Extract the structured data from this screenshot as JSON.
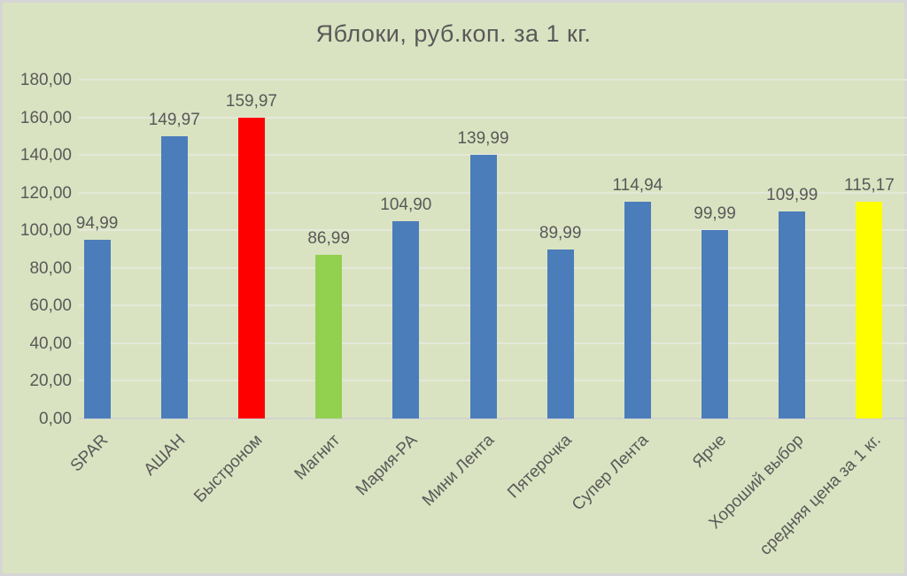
{
  "chart_data": {
    "type": "bar",
    "title": "Яблоки, руб.коп. за 1 кг.",
    "categories": [
      "SPAR",
      "АШАН",
      "Быстроном",
      "Магнит",
      "Мария-РА",
      "Мини Лента",
      "Пятерочка",
      "Супер Лента",
      "Ярче",
      "Хороший выбор",
      "средняя цена за 1 кг."
    ],
    "values": [
      94.99,
      149.97,
      159.97,
      86.99,
      104.9,
      139.99,
      89.99,
      114.94,
      99.99,
      109.99,
      115.17
    ],
    "value_labels": [
      "94,99",
      "149,97",
      "159,97",
      "86,99",
      "104,90",
      "139,99",
      "89,99",
      "114,94",
      "99,99",
      "109,99",
      "115,17"
    ],
    "bar_colors": [
      "#4b7dba",
      "#4b7dba",
      "#ff0000",
      "#92d050",
      "#4b7dba",
      "#4b7dba",
      "#4b7dba",
      "#4b7dba",
      "#4b7dba",
      "#4b7dba",
      "#ffff00"
    ],
    "xlabel": "",
    "ylabel": "",
    "ylim": [
      0,
      180
    ],
    "y_ticks": [
      {
        "value": 0,
        "label": "0,00"
      },
      {
        "value": 20,
        "label": "20,00"
      },
      {
        "value": 40,
        "label": "40,00"
      },
      {
        "value": 60,
        "label": "60,00"
      },
      {
        "value": 80,
        "label": "80,00"
      },
      {
        "value": 100,
        "label": "100,00"
      },
      {
        "value": 120,
        "label": "120,00"
      },
      {
        "value": 140,
        "label": "140,00"
      },
      {
        "value": 160,
        "label": "160,00"
      },
      {
        "value": 180,
        "label": "180,00"
      }
    ],
    "grid": true,
    "legend": "none",
    "colors": {
      "background": "#dae3c1",
      "frame_border": "#d6d6d6",
      "text": "#595959",
      "gridline": "#e4e8da",
      "axis_line": "#d2d2d2",
      "default_bar": "#4b7dba",
      "max_highlight": "#ff0000",
      "min_highlight": "#92d050",
      "average_highlight": "#ffff00"
    }
  }
}
